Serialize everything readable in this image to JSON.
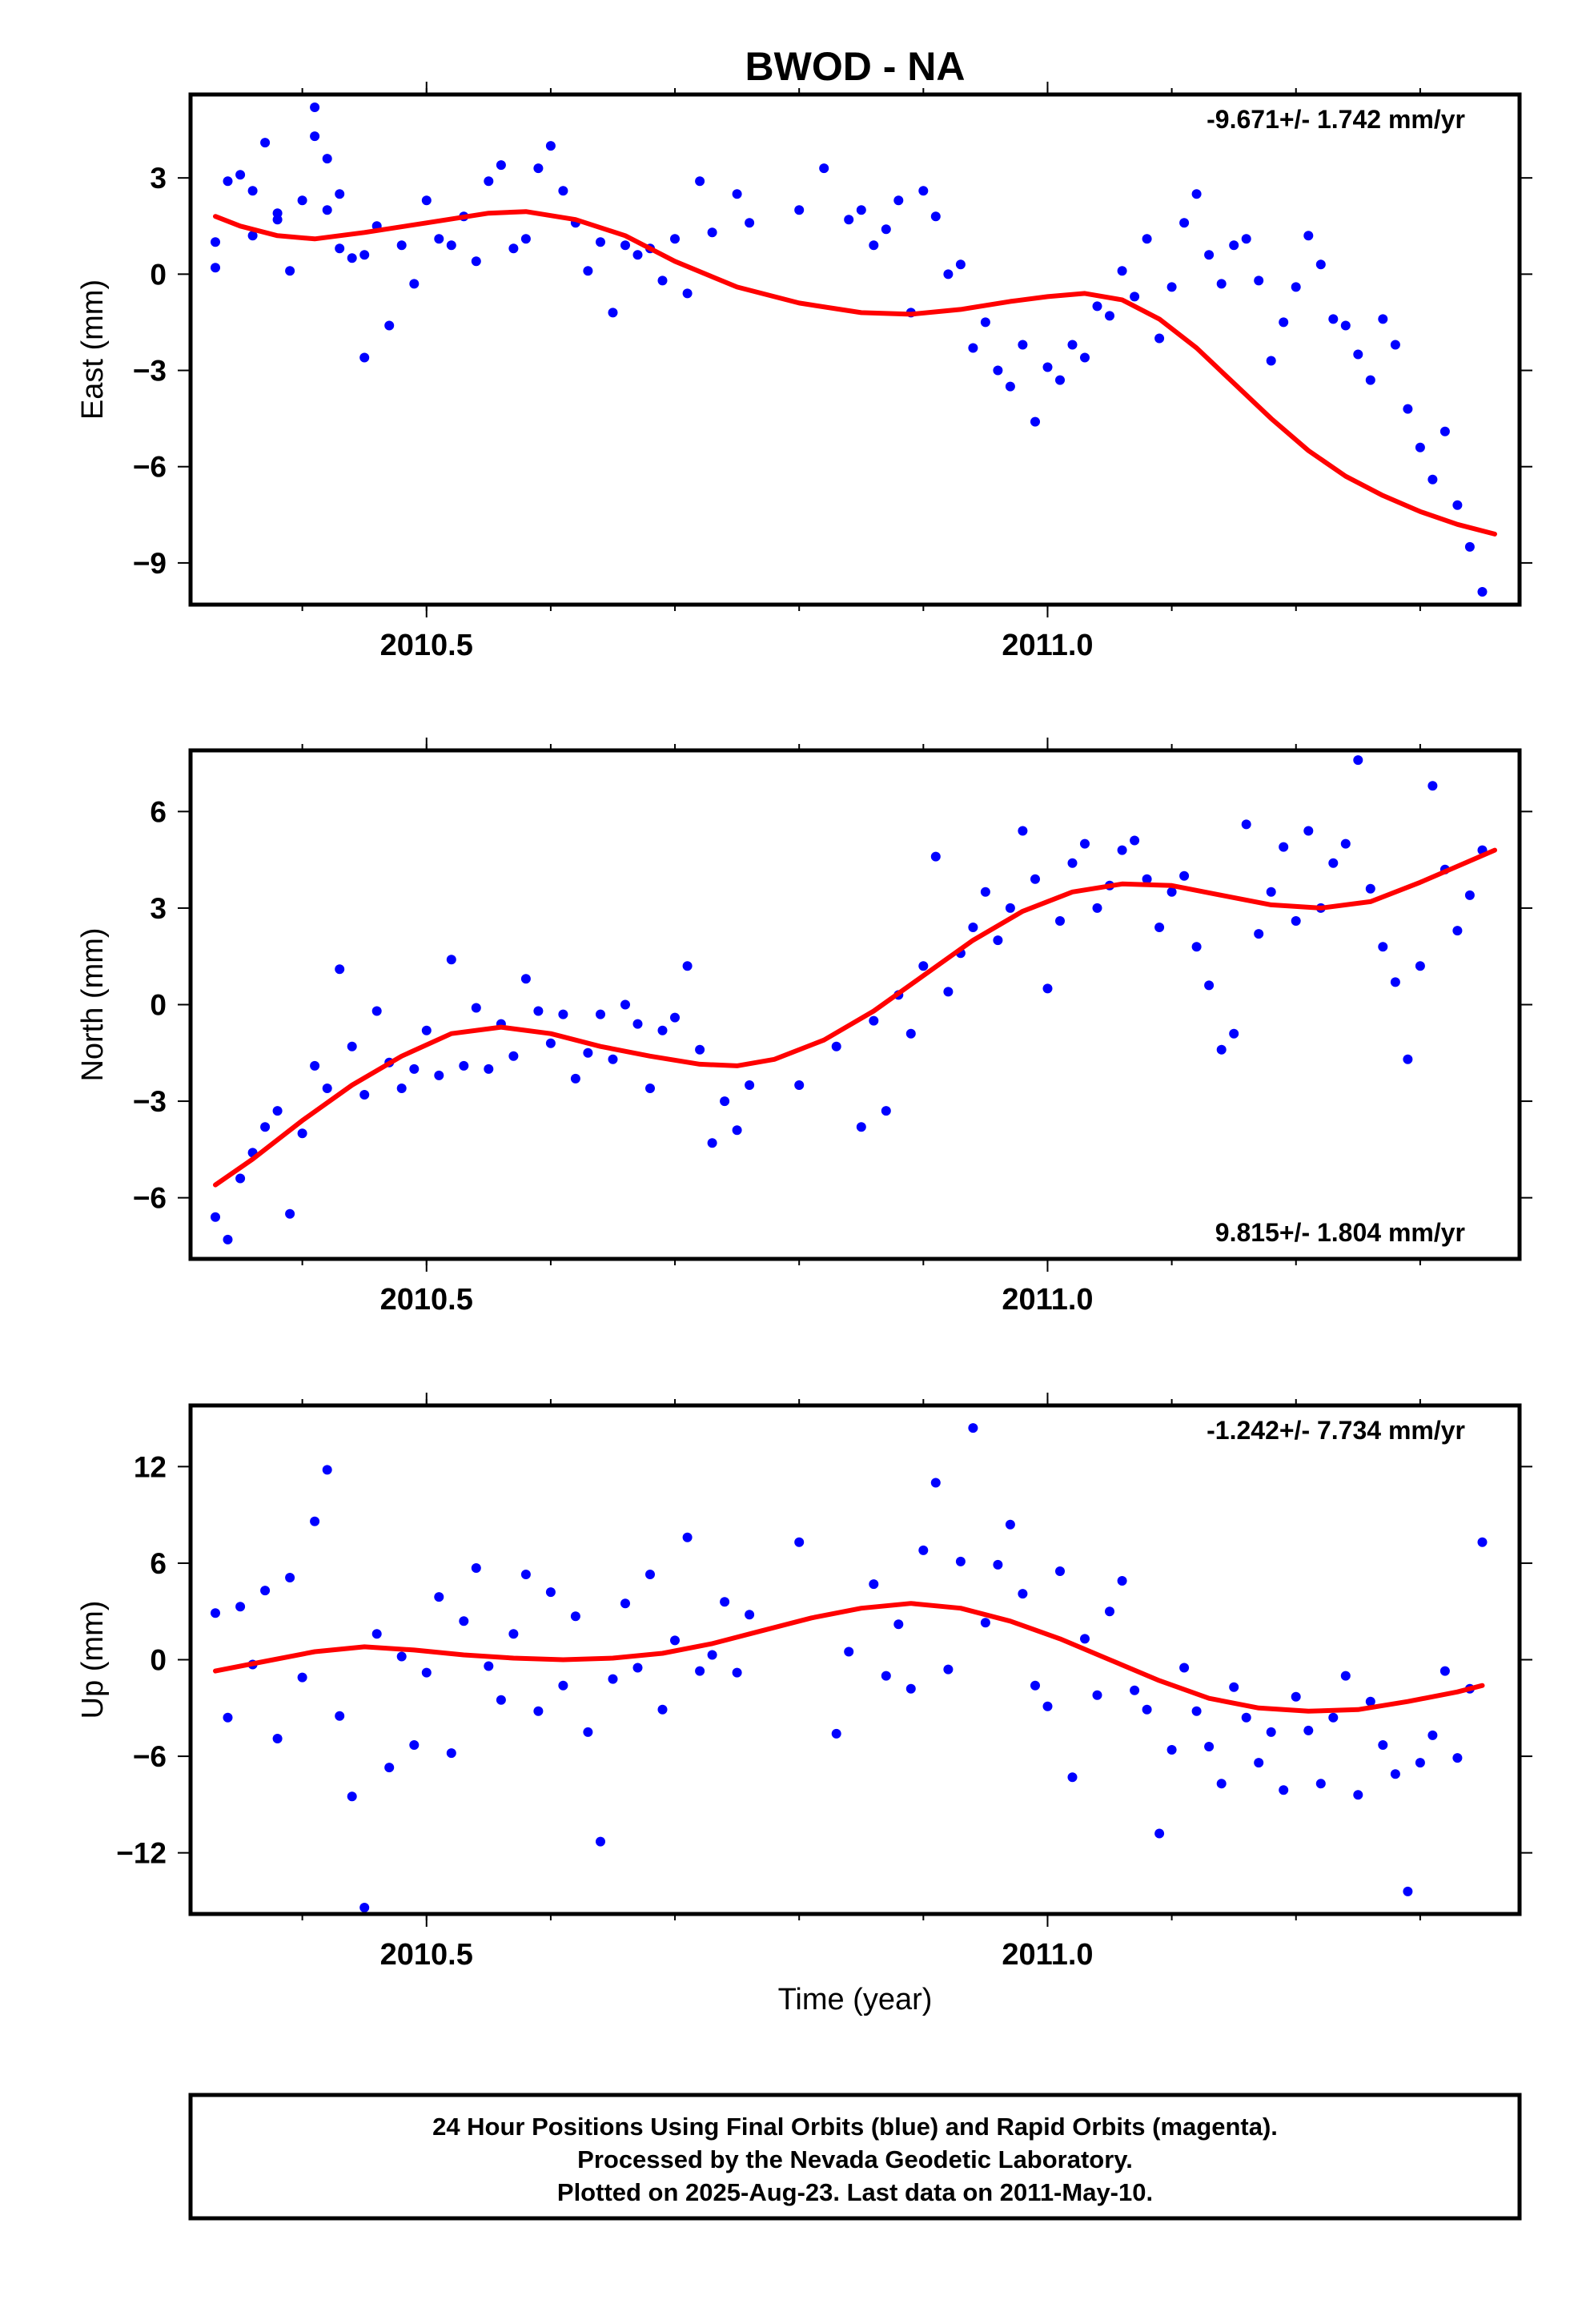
{
  "chart_data": {
    "title": "BWOD - NA",
    "xlabel": "Time (year)",
    "xlim": [
      2010.31,
      2011.38
    ],
    "x_ticks": [
      2010.5,
      2011.0
    ],
    "x_tick_labels": [
      "2010.5",
      "2011.0"
    ],
    "panels": [
      {
        "type": "scatter",
        "ylabel": "East (mm)",
        "ylim": [
          -10.3,
          5.6
        ],
        "y_ticks": [
          -9,
          -6,
          -3,
          0,
          3
        ],
        "y_tick_labels": [
          "−9",
          "−6",
          "−3",
          "0",
          "3"
        ],
        "rate_text": "-9.671+/- 1.742 mm/yr",
        "rate_position": "top-right",
        "series": [
          {
            "color": "#0000ff",
            "x": [
              2010.33,
              2010.33,
              2010.34,
              2010.35,
              2010.36,
              2010.36,
              2010.37,
              2010.38,
              2010.38,
              2010.39,
              2010.4,
              2010.41,
              2010.41,
              2010.42,
              2010.42,
              2010.43,
              2010.43,
              2010.44,
              2010.45,
              2010.45,
              2010.46,
              2010.47,
              2010.48,
              2010.49,
              2010.5,
              2010.51,
              2010.52,
              2010.53,
              2010.54,
              2010.55,
              2010.56,
              2010.57,
              2010.58,
              2010.59,
              2010.6,
              2010.61,
              2010.62,
              2010.63,
              2010.64,
              2010.65,
              2010.66,
              2010.67,
              2010.68,
              2010.69,
              2010.7,
              2010.71,
              2010.72,
              2010.73,
              2010.75,
              2010.76,
              2010.8,
              2010.82,
              2010.84,
              2010.85,
              2010.86,
              2010.87,
              2010.88,
              2010.89,
              2010.9,
              2010.91,
              2010.92,
              2010.93,
              2010.94,
              2010.95,
              2010.96,
              2010.97,
              2010.98,
              2010.99,
              2011.0,
              2011.01,
              2011.02,
              2011.03,
              2011.04,
              2011.05,
              2011.06,
              2011.07,
              2011.08,
              2011.09,
              2011.1,
              2011.11,
              2011.12,
              2011.13,
              2011.14,
              2011.15,
              2011.16,
              2011.17,
              2011.18,
              2011.19,
              2011.2,
              2011.21,
              2011.22,
              2011.23,
              2011.24,
              2011.25,
              2011.26,
              2011.27,
              2011.28,
              2011.29,
              2011.3,
              2011.31,
              2011.32,
              2011.33,
              2011.34,
              2011.35
            ],
            "y": [
              1.0,
              0.2,
              2.9,
              3.1,
              1.2,
              2.6,
              4.1,
              1.9,
              1.7,
              0.1,
              2.3,
              5.2,
              4.3,
              2.0,
              3.6,
              2.5,
              0.8,
              0.5,
              0.6,
              -2.6,
              1.5,
              -1.6,
              0.9,
              -0.3,
              2.3,
              1.1,
              0.9,
              1.8,
              0.4,
              2.9,
              3.4,
              0.8,
              1.1,
              3.3,
              4.0,
              2.6,
              1.6,
              0.1,
              1.0,
              -1.2,
              0.9,
              0.6,
              0.8,
              -0.2,
              1.1,
              -0.6,
              2.9,
              1.3,
              2.5,
              1.6,
              2.0,
              3.3,
              1.7,
              2.0,
              0.9,
              1.4,
              2.3,
              -1.2,
              2.6,
              1.8,
              0.0,
              0.3,
              -2.3,
              -1.5,
              -3.0,
              -3.5,
              -2.2,
              -4.6,
              -2.9,
              -3.3,
              -2.2,
              -2.6,
              -1.0,
              -1.3,
              0.1,
              -0.7,
              1.1,
              -2.0,
              -0.4,
              1.6,
              2.5,
              0.6,
              -0.3,
              0.9,
              1.1,
              -0.2,
              -2.7,
              -1.5,
              -0.4,
              1.2,
              0.3,
              -1.4,
              -1.6,
              -2.5,
              -3.3,
              -1.4,
              -2.2,
              -4.2,
              -5.4,
              -6.4,
              -4.9,
              -7.2,
              -8.5,
              -9.9
            ]
          },
          {
            "color": "#ff0000",
            "x": [
              2010.33,
              2010.35,
              2010.38,
              2010.41,
              2010.45,
              2010.5,
              2010.55,
              2010.58,
              2010.62,
              2010.66,
              2010.7,
              2010.75,
              2010.8,
              2010.85,
              2010.89,
              2010.93,
              2010.97,
              2011.0,
              2011.03,
              2011.06,
              2011.09,
              2011.12,
              2011.15,
              2011.18,
              2011.21,
              2011.24,
              2011.27,
              2011.3,
              2011.33,
              2011.36
            ],
            "y": [
              1.8,
              1.5,
              1.2,
              1.1,
              1.3,
              1.6,
              1.9,
              1.95,
              1.7,
              1.2,
              0.4,
              -0.4,
              -0.9,
              -1.2,
              -1.25,
              -1.1,
              -0.85,
              -0.7,
              -0.6,
              -0.8,
              -1.4,
              -2.3,
              -3.4,
              -4.5,
              -5.5,
              -6.3,
              -6.9,
              -7.4,
              -7.8,
              -8.1
            ]
          }
        ]
      },
      {
        "type": "scatter",
        "ylabel": "North (mm)",
        "ylim": [
          -7.9,
          7.9
        ],
        "y_ticks": [
          -6,
          -3,
          0,
          3,
          6
        ],
        "y_tick_labels": [
          "−6",
          "−3",
          "0",
          "3",
          "6"
        ],
        "rate_text": "9.815+/- 1.804 mm/yr",
        "rate_position": "bottom-right",
        "series": [
          {
            "color": "#0000ff",
            "x": [
              2010.33,
              2010.34,
              2010.35,
              2010.36,
              2010.37,
              2010.38,
              2010.39,
              2010.4,
              2010.41,
              2010.42,
              2010.43,
              2010.44,
              2010.45,
              2010.46,
              2010.47,
              2010.48,
              2010.49,
              2010.5,
              2010.51,
              2010.52,
              2010.53,
              2010.54,
              2010.55,
              2010.56,
              2010.57,
              2010.58,
              2010.59,
              2010.6,
              2010.61,
              2010.62,
              2010.63,
              2010.64,
              2010.65,
              2010.66,
              2010.67,
              2010.68,
              2010.69,
              2010.7,
              2010.71,
              2010.72,
              2010.73,
              2010.74,
              2010.75,
              2010.76,
              2010.8,
              2010.83,
              2010.85,
              2010.86,
              2010.87,
              2010.88,
              2010.89,
              2010.9,
              2010.91,
              2010.92,
              2010.93,
              2010.94,
              2010.95,
              2010.96,
              2010.97,
              2010.98,
              2010.99,
              2011.0,
              2011.01,
              2011.02,
              2011.03,
              2011.04,
              2011.05,
              2011.06,
              2011.07,
              2011.08,
              2011.09,
              2011.1,
              2011.11,
              2011.12,
              2011.13,
              2011.14,
              2011.15,
              2011.16,
              2011.17,
              2011.18,
              2011.19,
              2011.2,
              2011.21,
              2011.22,
              2011.23,
              2011.24,
              2011.25,
              2011.26,
              2011.27,
              2011.28,
              2011.29,
              2011.3,
              2011.31,
              2011.32,
              2011.33,
              2011.34,
              2011.35
            ],
            "y": [
              -6.6,
              -7.3,
              -5.4,
              -4.6,
              -3.8,
              -3.3,
              -6.5,
              -4.0,
              -1.9,
              -2.6,
              1.1,
              -1.3,
              -2.8,
              -0.2,
              -1.8,
              -2.6,
              -2.0,
              -0.8,
              -2.2,
              1.4,
              -1.9,
              -0.1,
              -2.0,
              -0.6,
              -1.6,
              0.8,
              -0.2,
              -1.2,
              -0.3,
              -2.3,
              -1.5,
              -0.3,
              -1.7,
              0.0,
              -0.6,
              -2.6,
              -0.8,
              -0.4,
              1.2,
              -1.4,
              -4.3,
              -3.0,
              -3.9,
              -2.5,
              -2.5,
              -1.3,
              -3.8,
              -0.5,
              -3.3,
              0.3,
              -0.9,
              1.2,
              4.6,
              0.4,
              1.6,
              2.4,
              3.5,
              2.0,
              3.0,
              5.4,
              3.9,
              0.5,
              2.6,
              4.4,
              5.0,
              3.0,
              3.7,
              4.8,
              5.1,
              3.9,
              2.4,
              3.5,
              4.0,
              1.8,
              0.6,
              -1.4,
              -0.9,
              5.6,
              2.2,
              3.5,
              4.9,
              2.6,
              5.4,
              3.0,
              4.4,
              5.0,
              7.6,
              3.6,
              1.8,
              0.7,
              -1.7,
              1.2,
              6.8,
              4.2,
              2.3,
              3.4,
              4.8
            ]
          },
          {
            "color": "#ff0000",
            "x": [
              2010.33,
              2010.36,
              2010.4,
              2010.44,
              2010.48,
              2010.52,
              2010.56,
              2010.6,
              2010.64,
              2010.68,
              2010.72,
              2010.75,
              2010.78,
              2010.82,
              2010.86,
              2010.9,
              2010.94,
              2010.98,
              2011.02,
              2011.06,
              2011.1,
              2011.14,
              2011.18,
              2011.22,
              2011.26,
              2011.3,
              2011.33,
              2011.36
            ],
            "y": [
              -5.6,
              -4.8,
              -3.6,
              -2.5,
              -1.6,
              -0.9,
              -0.7,
              -0.9,
              -1.3,
              -1.6,
              -1.85,
              -1.9,
              -1.7,
              -1.1,
              -0.2,
              0.9,
              2.0,
              2.9,
              3.5,
              3.75,
              3.7,
              3.4,
              3.1,
              3.0,
              3.2,
              3.8,
              4.3,
              4.8
            ]
          }
        ]
      },
      {
        "type": "scatter",
        "ylabel": "Up (mm)",
        "ylim": [
          -15.8,
          15.8
        ],
        "y_ticks": [
          -12,
          -6,
          0,
          6,
          12
        ],
        "y_tick_labels": [
          "−12",
          "−6",
          "0",
          "6",
          "12"
        ],
        "rate_text": "-1.242+/- 7.734 mm/yr",
        "rate_position": "top-right",
        "series": [
          {
            "color": "#0000ff",
            "x": [
              2010.33,
              2010.34,
              2010.35,
              2010.36,
              2010.37,
              2010.38,
              2010.39,
              2010.4,
              2010.41,
              2010.42,
              2010.43,
              2010.44,
              2010.45,
              2010.46,
              2010.47,
              2010.48,
              2010.49,
              2010.5,
              2010.51,
              2010.52,
              2010.53,
              2010.54,
              2010.55,
              2010.56,
              2010.57,
              2010.58,
              2010.59,
              2010.6,
              2010.61,
              2010.62,
              2010.63,
              2010.64,
              2010.65,
              2010.66,
              2010.67,
              2010.68,
              2010.69,
              2010.7,
              2010.71,
              2010.72,
              2010.73,
              2010.74,
              2010.75,
              2010.76,
              2010.8,
              2010.83,
              2010.84,
              2010.86,
              2010.87,
              2010.88,
              2010.89,
              2010.9,
              2010.91,
              2010.92,
              2010.93,
              2010.94,
              2010.95,
              2010.96,
              2010.97,
              2010.98,
              2010.99,
              2011.0,
              2011.01,
              2011.02,
              2011.03,
              2011.04,
              2011.05,
              2011.06,
              2011.07,
              2011.08,
              2011.09,
              2011.1,
              2011.11,
              2011.12,
              2011.13,
              2011.14,
              2011.15,
              2011.16,
              2011.17,
              2011.18,
              2011.19,
              2011.2,
              2011.21,
              2011.22,
              2011.23,
              2011.24,
              2011.25,
              2011.26,
              2011.27,
              2011.28,
              2011.29,
              2011.3,
              2011.31,
              2011.32,
              2011.33,
              2011.34,
              2011.35
            ],
            "y": [
              2.9,
              -3.6,
              3.3,
              -0.3,
              4.3,
              -4.9,
              5.1,
              -1.1,
              8.6,
              11.8,
              -3.5,
              -8.5,
              -15.4,
              1.6,
              -6.7,
              0.2,
              -5.3,
              -0.8,
              3.9,
              -5.8,
              2.4,
              5.7,
              -0.4,
              -2.5,
              1.6,
              5.3,
              -3.2,
              4.2,
              -1.6,
              2.7,
              -4.5,
              -11.3,
              -1.2,
              3.5,
              -0.5,
              5.3,
              -3.1,
              1.2,
              7.6,
              -0.7,
              0.3,
              3.6,
              -0.8,
              2.8,
              7.3,
              -4.6,
              0.5,
              4.7,
              -1.0,
              2.2,
              -1.8,
              6.8,
              11.0,
              -0.6,
              6.1,
              14.4,
              2.3,
              5.9,
              8.4,
              4.1,
              -1.6,
              -2.9,
              5.5,
              -7.3,
              1.3,
              -2.2,
              3.0,
              4.9,
              -1.9,
              -3.1,
              -10.8,
              -5.6,
              -0.5,
              -3.2,
              -5.4,
              -7.7,
              -1.7,
              -3.6,
              -6.4,
              -4.5,
              -8.1,
              -2.3,
              -4.4,
              -7.7,
              -3.6,
              -1.0,
              -8.4,
              -2.6,
              -5.3,
              -7.1,
              -14.4,
              -6.4,
              -4.7,
              -0.7,
              -6.1,
              -1.8,
              7.3
            ]
          },
          {
            "color": "#ff0000",
            "x": [
              2010.33,
              2010.37,
              2010.41,
              2010.45,
              2010.49,
              2010.53,
              2010.57,
              2010.61,
              2010.65,
              2010.69,
              2010.73,
              2010.77,
              2010.81,
              2010.85,
              2010.89,
              2010.93,
              2010.97,
              2011.01,
              2011.05,
              2011.09,
              2011.13,
              2011.17,
              2011.21,
              2011.25,
              2011.29,
              2011.33,
              2011.35
            ],
            "y": [
              -0.7,
              -0.1,
              0.5,
              0.8,
              0.6,
              0.3,
              0.1,
              0.0,
              0.1,
              0.4,
              1.0,
              1.8,
              2.6,
              3.2,
              3.5,
              3.2,
              2.4,
              1.3,
              0.0,
              -1.3,
              -2.4,
              -3.0,
              -3.2,
              -3.1,
              -2.6,
              -2.0,
              -1.6
            ]
          }
        ]
      }
    ],
    "footer_lines": [
      "24 Hour Positions Using Final Orbits (blue) and Rapid Orbits (magenta).",
      "Processed by the Nevada Geodetic Laboratory.",
      "Plotted on 2025-Aug-23. Last data on 2011-May-10."
    ]
  }
}
